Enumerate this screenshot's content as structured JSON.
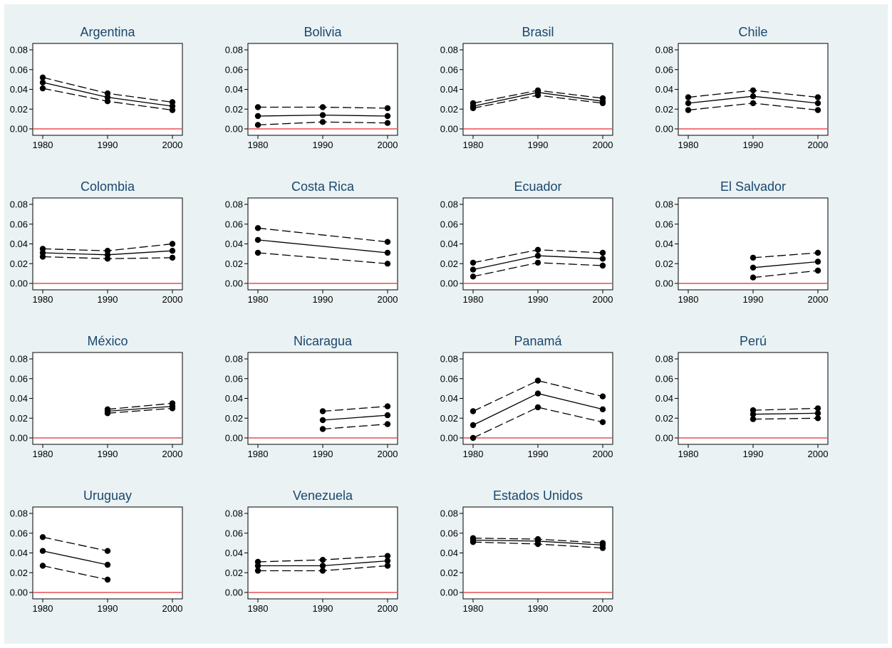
{
  "chart_data": {
    "type": "line",
    "layout": "small-multiples",
    "x": [
      1980,
      1990,
      2000
    ],
    "ylim": [
      0,
      0.08
    ],
    "yticks": [
      "0.00",
      "0.02",
      "0.04",
      "0.06",
      "0.08"
    ],
    "xticks": [
      "1980",
      "1990",
      "2000"
    ],
    "reference_line": {
      "y": 0,
      "color": "#e8292f"
    },
    "series_style": {
      "estimate": "solid",
      "upper": "dashed",
      "lower": "dashed",
      "marker": "filled-circle",
      "color": "#000000"
    },
    "panels": [
      {
        "title": "Argentina",
        "estimate": [
          0.047,
          0.032,
          0.023
        ],
        "upper": [
          0.052,
          0.036,
          0.027
        ],
        "lower": [
          0.041,
          0.028,
          0.019
        ]
      },
      {
        "title": "Bolivia",
        "estimate": [
          0.013,
          0.014,
          0.013
        ],
        "upper": [
          0.022,
          0.022,
          0.021
        ],
        "lower": [
          0.004,
          0.007,
          0.006
        ]
      },
      {
        "title": "Brasil",
        "estimate": [
          0.023,
          0.037,
          0.028
        ],
        "upper": [
          0.026,
          0.039,
          0.031
        ],
        "lower": [
          0.021,
          0.034,
          0.026
        ]
      },
      {
        "title": "Chile",
        "estimate": [
          0.026,
          0.033,
          0.026
        ],
        "upper": [
          0.032,
          0.039,
          0.032
        ],
        "lower": [
          0.019,
          0.026,
          0.019
        ]
      },
      {
        "title": "Colombia",
        "estimate": [
          0.031,
          0.029,
          0.033
        ],
        "upper": [
          0.035,
          0.033,
          0.04
        ],
        "lower": [
          0.027,
          0.025,
          0.026
        ]
      },
      {
        "title": "Costa Rica",
        "estimate": [
          0.044,
          null,
          0.031
        ],
        "upper": [
          0.056,
          null,
          0.042
        ],
        "lower": [
          0.031,
          null,
          0.02
        ]
      },
      {
        "title": "Ecuador",
        "estimate": [
          0.014,
          0.028,
          0.025
        ],
        "upper": [
          0.021,
          0.034,
          0.031
        ],
        "lower": [
          0.007,
          0.021,
          0.018
        ]
      },
      {
        "title": "El Salvador",
        "estimate": [
          null,
          0.016,
          0.022
        ],
        "upper": [
          null,
          0.026,
          0.031
        ],
        "lower": [
          null,
          0.006,
          0.013
        ]
      },
      {
        "title": "México",
        "estimate": [
          null,
          0.027,
          0.032
        ],
        "upper": [
          null,
          0.029,
          0.035
        ],
        "lower": [
          null,
          0.025,
          0.03
        ]
      },
      {
        "title": "Nicaragua",
        "estimate": [
          null,
          0.018,
          0.023
        ],
        "upper": [
          null,
          0.027,
          0.032
        ],
        "lower": [
          null,
          0.009,
          0.014
        ]
      },
      {
        "title": "Panamá",
        "estimate": [
          0.013,
          0.045,
          0.029
        ],
        "upper": [
          0.027,
          0.058,
          0.042
        ],
        "lower": [
          0.0,
          0.031,
          0.016
        ]
      },
      {
        "title": "Perú",
        "estimate": [
          null,
          0.024,
          0.025
        ],
        "upper": [
          null,
          0.028,
          0.03
        ],
        "lower": [
          null,
          0.019,
          0.02
        ]
      },
      {
        "title": "Uruguay",
        "estimate": [
          0.042,
          0.028,
          null
        ],
        "upper": [
          0.056,
          0.042,
          null
        ],
        "lower": [
          0.027,
          0.013,
          null
        ]
      },
      {
        "title": "Venezuela",
        "estimate": [
          0.027,
          0.027,
          0.032
        ],
        "upper": [
          0.031,
          0.033,
          0.037
        ],
        "lower": [
          0.022,
          0.022,
          0.027
        ]
      },
      {
        "title": "Estados Unidos",
        "estimate": [
          0.053,
          0.052,
          0.048
        ],
        "upper": [
          0.055,
          0.054,
          0.05
        ],
        "lower": [
          0.051,
          0.049,
          0.045
        ]
      }
    ]
  }
}
